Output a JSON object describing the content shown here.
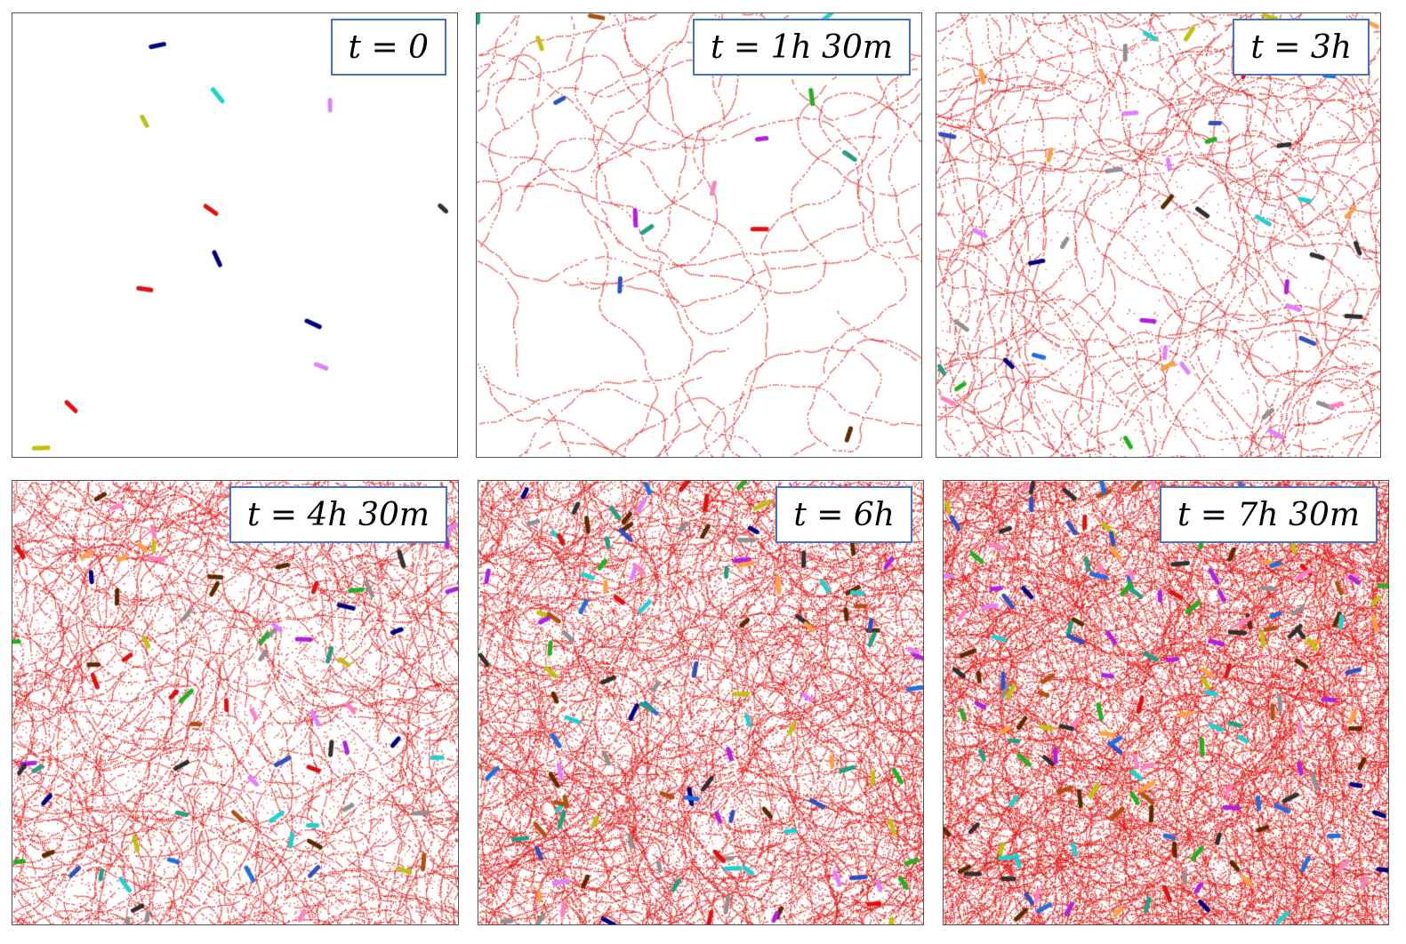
{
  "panels": [
    {
      "label": {
        "var": "t",
        "eq": "=",
        "value": "0"
      },
      "density": 0
    },
    {
      "label": {
        "var": "t",
        "eq": "=",
        "value": "1h 30m"
      },
      "density": 1
    },
    {
      "label": {
        "var": "t",
        "eq": "=",
        "value": "3h"
      },
      "density": 2
    },
    {
      "label": {
        "var": "t",
        "eq": "=",
        "value": "4h 30m"
      },
      "density": 3
    },
    {
      "label": {
        "var": "t",
        "eq": "=",
        "value": "6h"
      },
      "density": 4
    },
    {
      "label": {
        "var": "t",
        "eq": "=",
        "value": "7h 30m"
      },
      "density": 5
    }
  ],
  "colors": {
    "trail": "#e01b1b",
    "cells": [
      "#1f6fe0",
      "#b020e0",
      "#20b020",
      "#b05010",
      "#20d0d0",
      "#e01010",
      "#909090",
      "#c0c010",
      "#3050c0",
      "#303030",
      "#ff80c0",
      "#20a080",
      "#e080ff",
      "#5a2a00",
      "#000080",
      "#ffa040"
    ]
  }
}
